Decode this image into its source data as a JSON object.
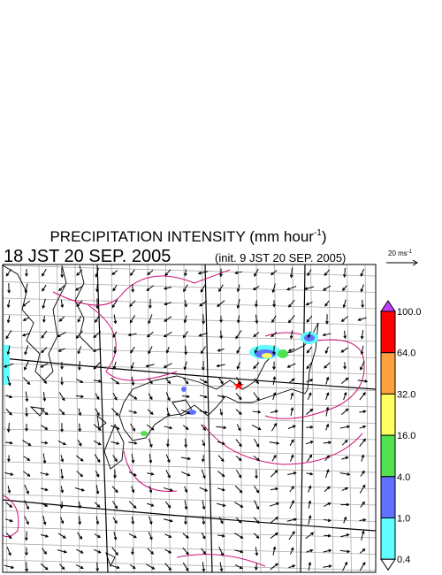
{
  "title": {
    "main": "PRECIPITATION INTENSITY (mm hour",
    "exponent": "-1",
    "close": ")"
  },
  "time": "18 JST 20 SEP. 2005",
  "init": "(init. 9 JST 20 SEP. 2005)",
  "wind_scale": {
    "label": "20 ms",
    "exponent": "-1"
  },
  "colorbar": {
    "levels": [
      "100.0",
      "64.0",
      "32.0",
      "16.0",
      "4.0",
      "1.0",
      "0.4"
    ],
    "colors": [
      "#ff0000",
      "#ffa040",
      "#ffff60",
      "#50e050",
      "#6070ff",
      "#60ffff"
    ],
    "over_color": "#c040ff",
    "under_color": "#ffffff"
  }
}
